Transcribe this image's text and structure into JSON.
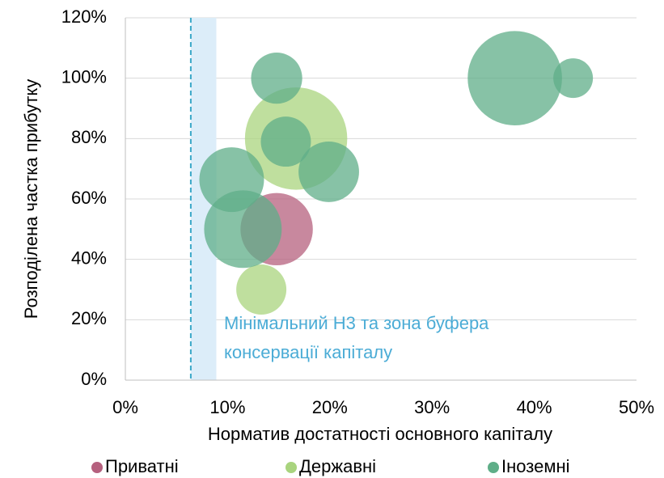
{
  "chart_data": {
    "type": "bubble",
    "xlabel": "Норматив достатності основного капіталу",
    "ylabel": "Розподілена частка прибутку",
    "xlim": [
      0,
      50
    ],
    "xticks": [
      {
        "value": 0,
        "label": "0%"
      },
      {
        "value": 10,
        "label": "10%"
      },
      {
        "value": 20,
        "label": "20%"
      },
      {
        "value": 30,
        "label": "30%"
      },
      {
        "value": 40,
        "label": "40%"
      },
      {
        "value": 50,
        "label": "50%"
      }
    ],
    "ylim": [
      0,
      120
    ],
    "yticks": [
      {
        "value": 0,
        "label": "0%"
      },
      {
        "value": 20,
        "label": "20%"
      },
      {
        "value": 40,
        "label": "40%"
      },
      {
        "value": 60,
        "label": "60%"
      },
      {
        "value": 80,
        "label": "80%"
      },
      {
        "value": 100,
        "label": "100%"
      },
      {
        "value": 120,
        "label": "120%"
      }
    ],
    "grid": true,
    "legend": "bottom",
    "buffer": {
      "min": 6.4,
      "max": 8.9,
      "line_color": "#3aa8c8",
      "fill": "#dcedf9"
    },
    "annotation": [
      "Мінімальний Н3 та зона буфера",
      "консервації капіталу"
    ],
    "annotation_color": "#4bacd6",
    "series": [
      {
        "name": "Приватні",
        "color": "#b5607e",
        "x": [
          14.8
        ],
        "values": [
          50
        ],
        "sizes": [
          20
        ]
      },
      {
        "name": "Державні",
        "color": "#a9d47e",
        "x": [
          16.7,
          13.3
        ],
        "values": [
          80,
          30
        ],
        "sizes": [
          40,
          9.6
        ]
      },
      {
        "name": "Іноземні",
        "color": "#5fae88",
        "x": [
          14.8,
          38.1,
          43.8,
          15.7,
          19.9,
          10.4,
          11.5
        ],
        "values": [
          100,
          100,
          100,
          79,
          69,
          66.4,
          50
        ],
        "sizes": [
          10,
          34,
          6,
          9.6,
          14,
          16,
          23
        ]
      }
    ]
  }
}
